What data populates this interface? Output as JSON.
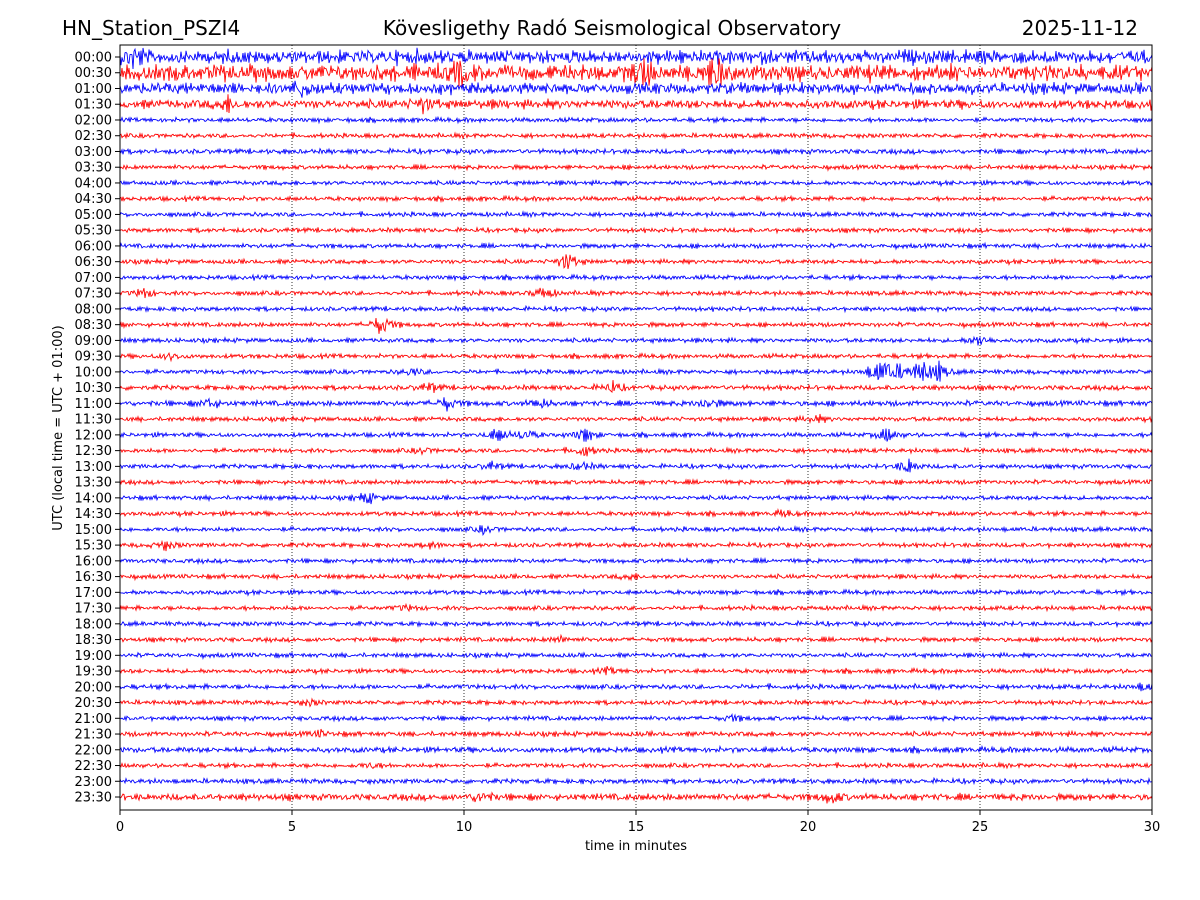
{
  "chart_data": {
    "type": "line",
    "title_left": "HN_Station_PSZI4",
    "title": "Kövesligethy Radó Seismological Observatory",
    "title_right": "2025-11-12",
    "xlabel": "time in minutes",
    "ylabel": "UTC (local time = UTC + 01:00)",
    "xlim": [
      0,
      30
    ],
    "xticks": [
      "0",
      "5",
      "10",
      "15",
      "20",
      "25",
      "30"
    ],
    "grid": "vertical dotted",
    "colors": [
      "#0000ff",
      "#ff0000"
    ],
    "rows": [
      "00:00",
      "00:30",
      "01:00",
      "01:30",
      "02:00",
      "02:30",
      "03:00",
      "03:30",
      "04:00",
      "04:30",
      "05:00",
      "05:30",
      "06:00",
      "06:30",
      "07:00",
      "07:30",
      "08:00",
      "08:30",
      "09:00",
      "09:30",
      "10:00",
      "10:30",
      "11:00",
      "11:30",
      "12:00",
      "12:30",
      "13:00",
      "13:30",
      "14:00",
      "14:30",
      "15:00",
      "15:30",
      "16:00",
      "16:30",
      "17:00",
      "17:30",
      "18:00",
      "18:30",
      "19:00",
      "19:30",
      "20:00",
      "20:30",
      "21:00",
      "21:30",
      "22:00",
      "22:30",
      "23:00",
      "23:30"
    ],
    "noise_level": [
      6,
      7,
      5,
      4,
      2,
      2,
      2.2,
      2,
      2,
      2,
      2,
      2,
      2,
      2,
      2,
      2,
      2,
      2,
      2,
      2,
      2,
      2.2,
      2.4,
      2,
      2,
      2,
      2,
      2,
      2,
      2,
      2,
      2,
      2,
      2,
      2,
      2,
      2,
      2,
      2,
      2,
      2.2,
      2,
      2,
      2.2,
      2.5,
      2,
      2.2,
      3
    ],
    "events": [
      [
        0,
        0.4,
        10
      ],
      [
        1,
        15.2,
        14
      ],
      [
        1,
        17.3,
        14
      ],
      [
        1,
        9.9,
        10
      ],
      [
        2,
        5.3,
        8
      ],
      [
        3,
        3.1,
        6
      ],
      [
        3,
        8.8,
        7
      ],
      [
        13,
        13.0,
        10
      ],
      [
        15,
        12.3,
        6
      ],
      [
        15,
        0.7,
        5
      ],
      [
        17,
        7.6,
        12
      ],
      [
        18,
        25.0,
        6
      ],
      [
        19,
        1.5,
        4
      ],
      [
        20,
        22.0,
        10
      ],
      [
        20,
        22.3,
        8
      ],
      [
        20,
        22.7,
        6
      ],
      [
        20,
        23.3,
        12
      ],
      [
        20,
        23.8,
        8
      ],
      [
        20,
        8.5,
        4
      ],
      [
        21,
        9.0,
        5
      ],
      [
        21,
        14.3,
        6
      ],
      [
        22,
        2.6,
        5
      ],
      [
        22,
        9.5,
        7
      ],
      [
        22,
        12.2,
        5
      ],
      [
        22,
        17.1,
        6
      ],
      [
        23,
        20.2,
        4
      ],
      [
        24,
        11.0,
        7
      ],
      [
        24,
        11.8,
        6
      ],
      [
        24,
        13.5,
        7
      ],
      [
        24,
        22.3,
        7
      ],
      [
        25,
        13.5,
        6
      ],
      [
        25,
        8.8,
        3
      ],
      [
        26,
        10.8,
        4
      ],
      [
        26,
        22.9,
        8
      ],
      [
        26,
        13.4,
        5
      ],
      [
        28,
        7.2,
        6
      ],
      [
        29,
        19.3,
        3
      ],
      [
        30,
        10.6,
        4
      ],
      [
        31,
        1.3,
        5
      ],
      [
        31,
        9.0,
        3
      ],
      [
        33,
        14.8,
        3
      ],
      [
        35,
        8.3,
        3
      ],
      [
        37,
        12.8,
        3
      ],
      [
        39,
        14.2,
        3
      ],
      [
        40,
        29.8,
        4
      ],
      [
        41,
        5.5,
        3
      ],
      [
        42,
        17.8,
        3
      ],
      [
        43,
        5.8,
        3
      ],
      [
        45,
        7.3,
        3
      ],
      [
        47,
        10.5,
        6
      ],
      [
        47,
        20.7,
        6
      ]
    ]
  }
}
